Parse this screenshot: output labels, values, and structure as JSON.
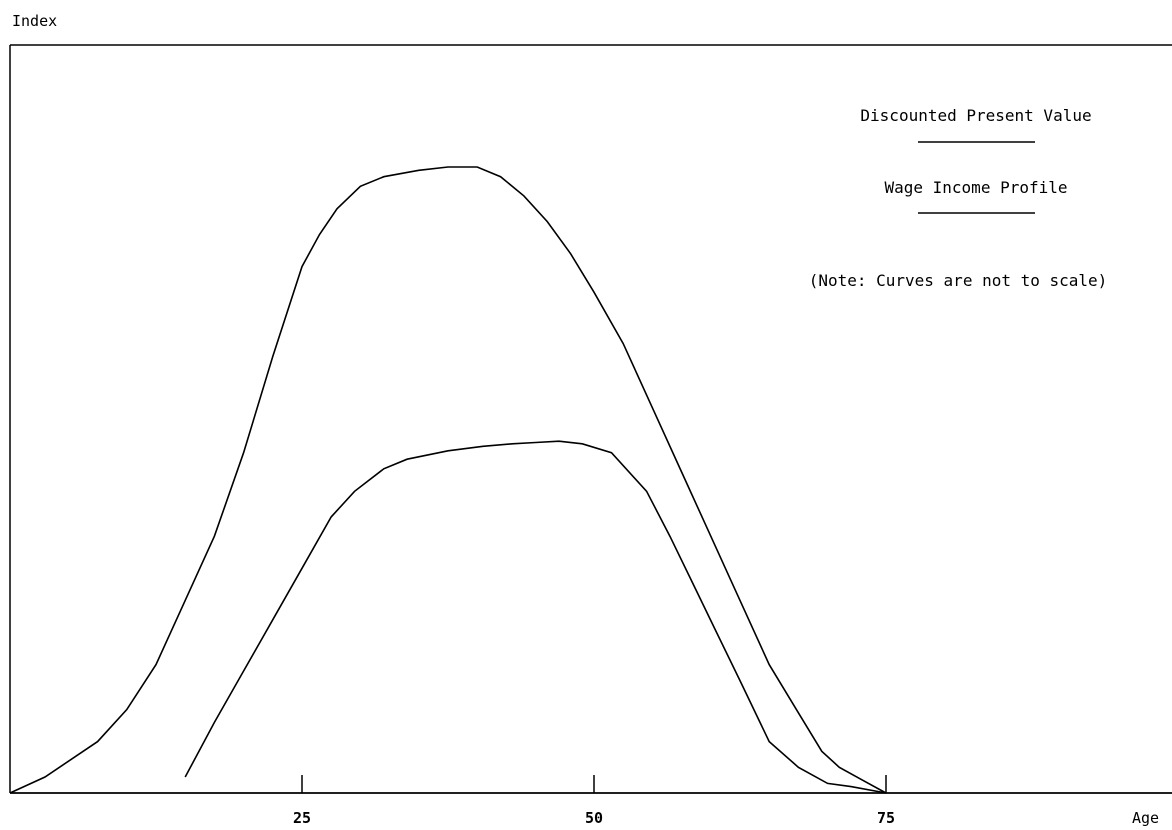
{
  "chart_data": {
    "type": "line",
    "xlabel": "Age",
    "ylabel": "Index",
    "xlim": [
      0,
      100
    ],
    "ylim": [
      0,
      100
    ],
    "xticks": [
      25,
      50,
      75
    ],
    "x_tick_labels": [
      "25",
      "50",
      "75"
    ],
    "grid": false,
    "series": [
      {
        "name": "Discounted Present Value",
        "x": [
          0,
          3,
          7.5,
          10,
          12.5,
          15,
          17.5,
          20,
          22.5,
          25,
          26.5,
          28,
          30,
          32,
          35,
          37.5,
          40,
          42,
          44,
          46,
          48,
          50,
          52.5,
          55,
          57.5,
          60,
          62.5,
          65,
          67.5,
          69.5,
          71,
          73,
          75
        ],
        "y": [
          0,
          2.5,
          8,
          13,
          20,
          30,
          40,
          53,
          68,
          82,
          87,
          91,
          94.5,
          96,
          97,
          97.5,
          97.5,
          96,
          93,
          89,
          84,
          78,
          70,
          60,
          50,
          40,
          30,
          20,
          12.5,
          6.5,
          4,
          2,
          0
        ]
      },
      {
        "name": "Wage Income Profile",
        "x": [
          15,
          17.5,
          20,
          22.5,
          25,
          27.5,
          29.5,
          32,
          34,
          37.5,
          40.5,
          43,
          45,
          47,
          49,
          51.5,
          54.5,
          56.5,
          58.5,
          60.5,
          62.5,
          65,
          67.5,
          70,
          72,
          75
        ],
        "y": [
          2.5,
          11,
          19,
          27,
          35,
          43,
          47,
          50.5,
          52,
          53.3,
          54,
          54.4,
          54.6,
          54.8,
          54.4,
          53,
          47,
          40,
          32.5,
          25,
          17.5,
          8,
          4,
          1.5,
          1,
          0
        ]
      }
    ],
    "legend": {
      "position": "top-right",
      "note": "(Note: Curves are not to scale)"
    }
  }
}
